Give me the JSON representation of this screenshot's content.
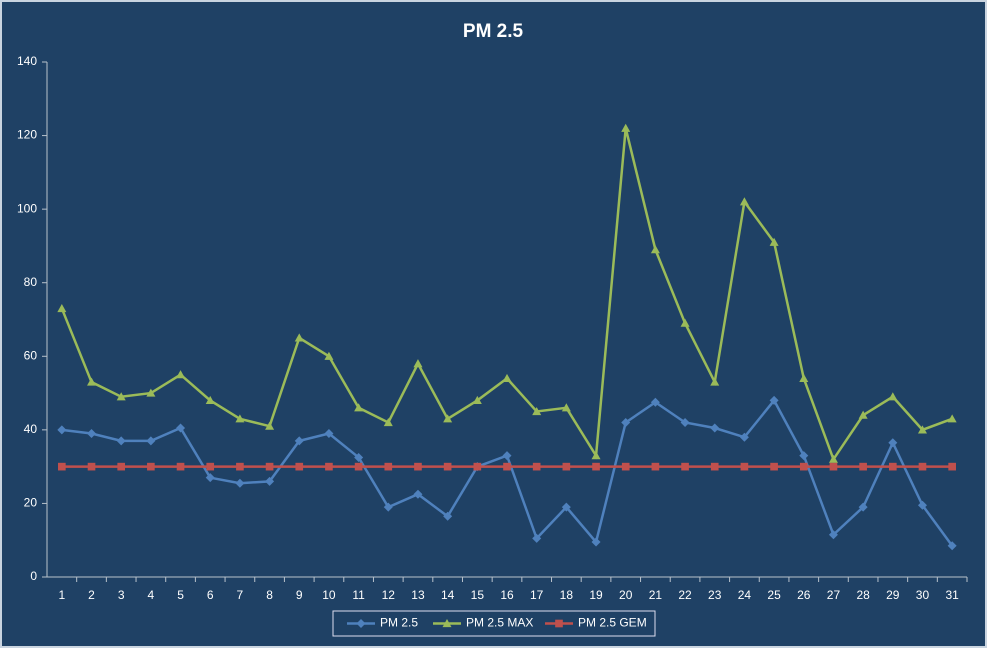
{
  "chart_data": {
    "type": "line",
    "title": "PM 2.5",
    "categories": [
      "1",
      "2",
      "3",
      "4",
      "5",
      "6",
      "7",
      "8",
      "9",
      "10",
      "11",
      "12",
      "13",
      "14",
      "15",
      "16",
      "17",
      "18",
      "19",
      "20",
      "21",
      "22",
      "23",
      "24",
      "25",
      "26",
      "27",
      "28",
      "29",
      "30",
      "31"
    ],
    "series": [
      {
        "name": "PM 2.5",
        "color": "#4f81bd",
        "marker": "diamond",
        "values": [
          40,
          39,
          37,
          37,
          40.5,
          27,
          25.5,
          26,
          37,
          39,
          32.5,
          19,
          22.5,
          16.5,
          30,
          33,
          10.5,
          19,
          9.5,
          42,
          47.5,
          42,
          40.5,
          38,
          48,
          33,
          11.5,
          19,
          36.5,
          19.5,
          8.5
        ]
      },
      {
        "name": "PM 2.5 MAX",
        "color": "#9bbb59",
        "marker": "triangle",
        "values": [
          73,
          53,
          49,
          50,
          55,
          48,
          43,
          41,
          65,
          60,
          46,
          42,
          58,
          43,
          48,
          54,
          45,
          46,
          33,
          122,
          89,
          69,
          53,
          102,
          91,
          54,
          32,
          44,
          49,
          40,
          43
        ]
      },
      {
        "name": "PM 2.5 GEM",
        "color": "#c0504d",
        "marker": "square",
        "values": [
          30,
          30,
          30,
          30,
          30,
          30,
          30,
          30,
          30,
          30,
          30,
          30,
          30,
          30,
          30,
          30,
          30,
          30,
          30,
          30,
          30,
          30,
          30,
          30,
          30,
          30,
          30,
          30,
          30,
          30,
          30
        ]
      }
    ],
    "ylim": [
      0,
      140
    ],
    "yticks": [
      0,
      20,
      40,
      60,
      80,
      100,
      120,
      140
    ],
    "grid": false,
    "legend": "bottom"
  }
}
